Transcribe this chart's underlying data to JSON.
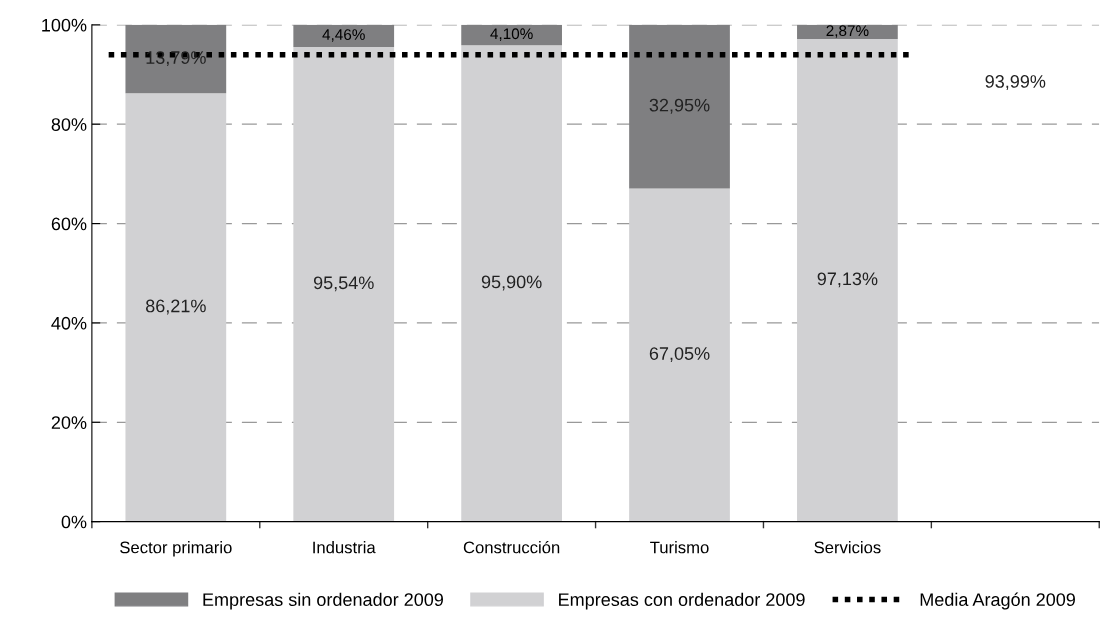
{
  "chart_data": {
    "type": "bar",
    "stacked": true,
    "categories": [
      "Sector primario",
      "Industria",
      "Construcción",
      "Turismo",
      "Servicios",
      null
    ],
    "series": [
      {
        "name": "Empresas con ordenador 2009",
        "color": "#d1d1d3",
        "values": [
          86.21,
          95.54,
          95.9,
          67.05,
          97.13,
          null
        ],
        "value_labels": [
          "86,21%",
          "95,54%",
          "95,90%",
          "67,05%",
          "97,13%",
          null
        ]
      },
      {
        "name": "Empresas sin ordenador 2009",
        "color": "#7f7f81",
        "values": [
          13.79,
          4.46,
          4.1,
          32.95,
          2.87,
          null
        ],
        "value_labels": [
          "13,79%",
          "4,46%",
          "4,10%",
          "32,95%",
          "2,87%",
          null
        ]
      }
    ],
    "ylim": [
      0,
      100
    ],
    "yticks": [
      {
        "value": 0,
        "label": "0%"
      },
      {
        "value": 20,
        "label": "20%"
      },
      {
        "value": 40,
        "label": "40%"
      },
      {
        "value": 60,
        "label": "60%"
      },
      {
        "value": 80,
        "label": "80%"
      },
      {
        "value": 100,
        "label": "100%"
      }
    ],
    "ref_lines": [
      {
        "axis": "y",
        "value": 93.99,
        "label": "Media Aragón 2009",
        "color": "#000000",
        "line_style": "dotted"
      }
    ],
    "annotations": [
      "93,99%"
    ],
    "grid": "y",
    "legend": "bottom"
  }
}
